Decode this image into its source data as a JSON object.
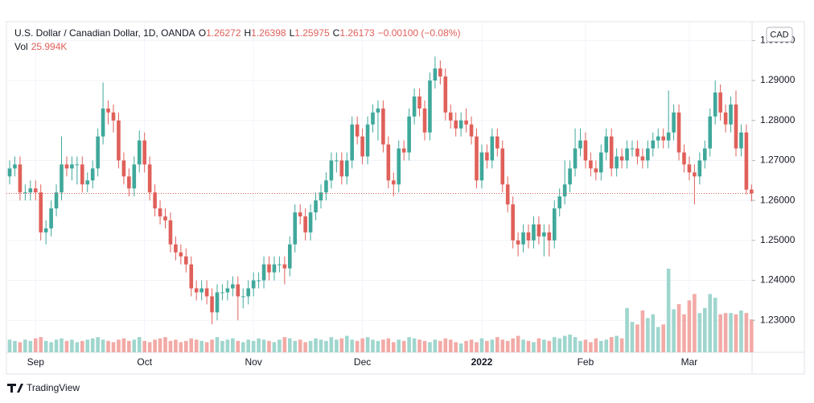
{
  "chart_data": {
    "type": "candlestick",
    "legend": {
      "title": "U.S. Dollar / Canadian Dollar, 1D, OANDA",
      "open_label": "O",
      "open": "1.26272",
      "high_label": "H",
      "high": "1.26398",
      "low_label": "L",
      "low": "1.25975",
      "close_label": "C",
      "close": "1.26173",
      "change": "−0.00100 (−0.08%)",
      "volume_label": "Vol",
      "volume": "25.994K"
    },
    "currency": "CAD",
    "branding": "TradingView",
    "up_color": "#3fa89b",
    "down_color": "#e0605a",
    "volume_up_color": "#9fd6ce",
    "volume_down_color": "#f2aaa6",
    "grid": true,
    "ylim": [
      1.222,
      1.3045
    ],
    "yticks": [
      {
        "value": 1.23,
        "label": "1.23000"
      },
      {
        "value": 1.24,
        "label": "1.24000"
      },
      {
        "value": 1.25,
        "label": "1.25000"
      },
      {
        "value": 1.26,
        "label": "1.26000"
      },
      {
        "value": 1.27,
        "label": "1.27000"
      },
      {
        "value": 1.28,
        "label": "1.28000"
      },
      {
        "value": 1.29,
        "label": "1.29000"
      },
      {
        "value": 1.3,
        "label": "1.30000"
      }
    ],
    "categories": [
      null,
      null,
      null,
      null,
      null,
      "Sep",
      null,
      null,
      null,
      null,
      null,
      null,
      null,
      null,
      null,
      null,
      null,
      null,
      null,
      null,
      null,
      null,
      null,
      null,
      null,
      null,
      "Oct",
      null,
      null,
      null,
      null,
      null,
      null,
      null,
      null,
      null,
      null,
      null,
      null,
      null,
      null,
      null,
      null,
      null,
      null,
      null,
      null,
      "Nov",
      null,
      null,
      null,
      null,
      null,
      null,
      null,
      null,
      null,
      null,
      null,
      null,
      null,
      null,
      null,
      null,
      null,
      null,
      null,
      null,
      "Dec",
      null,
      null,
      null,
      null,
      null,
      null,
      null,
      null,
      null,
      null,
      null,
      null,
      null,
      null,
      null,
      null,
      null,
      null,
      null,
      null,
      null,
      null,
      "2022",
      null,
      null,
      null,
      null,
      null,
      null,
      null,
      null,
      null,
      null,
      null,
      null,
      null,
      null,
      null,
      null,
      null,
      null,
      null,
      "Feb",
      null,
      null,
      null,
      null,
      null,
      null,
      null,
      null,
      null,
      null,
      null,
      null,
      null,
      null,
      null,
      null,
      null,
      null,
      null,
      "Mar",
      null,
      null,
      null,
      null,
      null,
      null,
      null,
      null,
      null,
      null,
      null,
      null
    ],
    "open": [
      1.266,
      1.268,
      1.269,
      1.262,
      1.262,
      1.263,
      1.262,
      1.252,
      1.253,
      1.258,
      1.262,
      1.269,
      1.268,
      1.269,
      1.269,
      1.264,
      1.265,
      1.268,
      1.276,
      1.283,
      1.282,
      1.28,
      1.27,
      1.266,
      1.263,
      1.269,
      1.275,
      1.269,
      1.262,
      1.258,
      1.256,
      1.255,
      1.249,
      1.247,
      1.246,
      1.244,
      1.238,
      1.237,
      1.238,
      1.236,
      1.232,
      1.237,
      1.237,
      1.238,
      1.239,
      1.236,
      1.236,
      1.238,
      1.24,
      1.24,
      1.244,
      1.242,
      1.244,
      1.244,
      1.243,
      1.249,
      1.257,
      1.256,
      1.252,
      1.257,
      1.26,
      1.262,
      1.265,
      1.27,
      1.27,
      1.266,
      1.27,
      1.279,
      1.276,
      1.271,
      1.279,
      1.282,
      1.283,
      1.274,
      1.265,
      1.264,
      1.273,
      1.272,
      1.281,
      1.286,
      1.283,
      1.277,
      1.29,
      1.293,
      1.291,
      1.282,
      1.28,
      1.278,
      1.28,
      1.279,
      1.276,
      1.265,
      1.272,
      1.27,
      1.276,
      1.273,
      1.264,
      1.259,
      1.25,
      1.249,
      1.252,
      1.25,
      1.254,
      1.251,
      1.252,
      1.25,
      1.258,
      1.261,
      1.264,
      1.268,
      1.273,
      1.275,
      1.27,
      1.268,
      1.267,
      1.272,
      1.276,
      1.268,
      1.271,
      1.27,
      1.273,
      1.273,
      1.271,
      1.27,
      1.273,
      1.275,
      1.276,
      1.275,
      1.277,
      1.282,
      1.272,
      1.269,
      1.267,
      1.266,
      1.27,
      1.273,
      1.281,
      1.287,
      1.282,
      1.279,
      1.284,
      1.273,
      1.277,
      1.26272
    ],
    "high": [
      1.27,
      1.271,
      1.271,
      1.264,
      1.265,
      1.265,
      1.264,
      1.255,
      1.26,
      1.264,
      1.276,
      1.271,
      1.271,
      1.271,
      1.271,
      1.267,
      1.27,
      1.278,
      1.2895,
      1.285,
      1.284,
      1.282,
      1.272,
      1.268,
      1.271,
      1.2775,
      1.277,
      1.271,
      1.264,
      1.26,
      1.258,
      1.257,
      1.251,
      1.249,
      1.248,
      1.246,
      1.24,
      1.24,
      1.24,
      1.238,
      1.239,
      1.239,
      1.24,
      1.241,
      1.241,
      1.238,
      1.24,
      1.242,
      1.242,
      1.246,
      1.246,
      1.246,
      1.246,
      1.246,
      1.251,
      1.259,
      1.259,
      1.258,
      1.259,
      1.262,
      1.264,
      1.267,
      1.272,
      1.272,
      1.272,
      1.272,
      1.281,
      1.281,
      1.278,
      1.281,
      1.284,
      1.285,
      1.285,
      1.276,
      1.267,
      1.275,
      1.275,
      1.283,
      1.288,
      1.288,
      1.285,
      1.292,
      1.296,
      1.295,
      1.293,
      1.284,
      1.282,
      1.282,
      1.283,
      1.281,
      1.278,
      1.274,
      1.274,
      1.278,
      1.278,
      1.275,
      1.266,
      1.261,
      1.252,
      1.254,
      1.254,
      1.256,
      1.256,
      1.254,
      1.254,
      1.26,
      1.263,
      1.27,
      1.27,
      1.278,
      1.278,
      1.277,
      1.272,
      1.27,
      1.274,
      1.278,
      1.278,
      1.273,
      1.273,
      1.275,
      1.275,
      1.275,
      1.273,
      1.275,
      1.277,
      1.278,
      1.278,
      1.2875,
      1.284,
      1.284,
      1.274,
      1.271,
      1.269,
      1.272,
      1.275,
      1.283,
      1.29,
      1.289,
      1.284,
      1.286,
      1.2875,
      1.279,
      1.279,
      1.26398
    ],
    "low": [
      1.264,
      1.266,
      1.26,
      1.26,
      1.26,
      1.26,
      1.25,
      1.249,
      1.251,
      1.256,
      1.26,
      1.266,
      1.265,
      1.264,
      1.262,
      1.262,
      1.263,
      1.266,
      1.274,
      1.279,
      1.277,
      1.268,
      1.264,
      1.261,
      1.261,
      1.267,
      1.267,
      1.26,
      1.256,
      1.254,
      1.253,
      1.247,
      1.245,
      1.244,
      1.242,
      1.236,
      1.235,
      1.235,
      1.234,
      1.229,
      1.23,
      1.235,
      1.235,
      1.236,
      1.23,
      1.233,
      1.234,
      1.236,
      1.238,
      1.238,
      1.24,
      1.24,
      1.242,
      1.239,
      1.241,
      1.247,
      1.254,
      1.25,
      1.25,
      1.255,
      1.258,
      1.26,
      1.263,
      1.267,
      1.264,
      1.264,
      1.268,
      1.274,
      1.269,
      1.269,
      1.277,
      1.275,
      1.272,
      1.263,
      1.261,
      1.262,
      1.27,
      1.27,
      1.279,
      1.281,
      1.275,
      1.275,
      1.288,
      1.289,
      1.28,
      1.278,
      1.276,
      1.276,
      1.277,
      1.274,
      1.263,
      1.263,
      1.268,
      1.268,
      1.271,
      1.262,
      1.257,
      1.248,
      1.246,
      1.247,
      1.248,
      1.248,
      1.249,
      1.246,
      1.246,
      1.248,
      1.256,
      1.259,
      1.262,
      1.266,
      1.271,
      1.268,
      1.266,
      1.265,
      1.265,
      1.27,
      1.266,
      1.266,
      1.268,
      1.268,
      1.271,
      1.269,
      1.268,
      1.268,
      1.271,
      1.273,
      1.273,
      1.273,
      1.275,
      1.27,
      1.267,
      1.265,
      1.259,
      1.264,
      1.268,
      1.271,
      1.279,
      1.28,
      1.277,
      1.277,
      1.271,
      1.271,
      1.2615,
      1.25975
    ],
    "close": [
      1.268,
      1.269,
      1.262,
      1.262,
      1.263,
      1.262,
      1.252,
      1.253,
      1.258,
      1.262,
      1.269,
      1.268,
      1.269,
      1.269,
      1.264,
      1.265,
      1.268,
      1.276,
      1.283,
      1.282,
      1.28,
      1.27,
      1.266,
      1.263,
      1.269,
      1.275,
      1.269,
      1.262,
      1.258,
      1.256,
      1.255,
      1.249,
      1.247,
      1.246,
      1.244,
      1.238,
      1.237,
      1.238,
      1.236,
      1.232,
      1.237,
      1.237,
      1.238,
      1.239,
      1.236,
      1.236,
      1.238,
      1.24,
      1.24,
      1.244,
      1.242,
      1.244,
      1.244,
      1.243,
      1.249,
      1.257,
      1.256,
      1.252,
      1.257,
      1.26,
      1.262,
      1.265,
      1.27,
      1.27,
      1.266,
      1.27,
      1.279,
      1.276,
      1.271,
      1.279,
      1.282,
      1.283,
      1.274,
      1.265,
      1.264,
      1.273,
      1.272,
      1.281,
      1.286,
      1.283,
      1.277,
      1.29,
      1.293,
      1.291,
      1.282,
      1.28,
      1.278,
      1.28,
      1.279,
      1.276,
      1.265,
      1.272,
      1.27,
      1.276,
      1.273,
      1.264,
      1.259,
      1.25,
      1.249,
      1.252,
      1.25,
      1.254,
      1.251,
      1.252,
      1.25,
      1.258,
      1.261,
      1.264,
      1.268,
      1.273,
      1.275,
      1.27,
      1.268,
      1.267,
      1.272,
      1.276,
      1.268,
      1.271,
      1.27,
      1.273,
      1.273,
      1.271,
      1.27,
      1.273,
      1.275,
      1.276,
      1.275,
      1.277,
      1.282,
      1.272,
      1.269,
      1.267,
      1.266,
      1.27,
      1.273,
      1.281,
      1.287,
      1.282,
      1.279,
      1.284,
      1.273,
      1.277,
      1.2627,
      1.26173
    ],
    "volume": [
      10,
      9,
      8,
      10,
      9,
      11,
      12,
      9,
      8,
      10,
      11,
      9,
      10,
      8,
      9,
      10,
      11,
      12,
      10,
      9,
      8,
      10,
      11,
      9,
      10,
      12,
      9,
      8,
      10,
      11,
      12,
      9,
      10,
      8,
      9,
      11,
      10,
      9,
      8,
      10,
      12,
      9,
      10,
      11,
      9,
      8,
      10,
      9,
      11,
      10,
      9,
      8,
      10,
      12,
      11,
      9,
      10,
      8,
      9,
      11,
      10,
      9,
      12,
      10,
      11,
      13,
      10,
      9,
      11,
      12,
      10,
      9,
      10,
      11,
      8,
      10,
      9,
      12,
      11,
      10,
      9,
      8,
      10,
      9,
      11,
      10,
      8,
      7,
      9,
      10,
      8,
      11,
      9,
      10,
      12,
      10,
      9,
      11,
      13,
      10,
      9,
      8,
      11,
      10,
      9,
      12,
      11,
      13,
      14,
      12,
      9,
      10,
      8,
      11,
      9,
      10,
      12,
      13,
      11,
      35,
      24,
      22,
      33,
      27,
      30,
      20,
      22,
      66,
      34,
      38,
      30,
      41,
      46,
      31,
      35,
      46,
      43,
      30,
      31,
      31,
      30,
      33,
      31,
      25.994
    ]
  }
}
